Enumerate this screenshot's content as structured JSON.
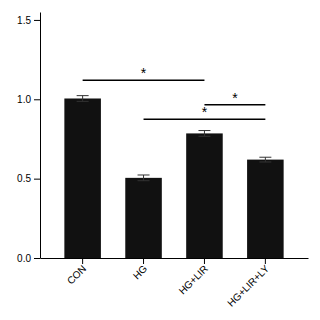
{
  "chart_data": {
    "type": "bar",
    "categories": [
      "CON",
      "HG",
      "HG+LIR",
      "HG+LIR+LY"
    ],
    "values": [
      1.005,
      0.505,
      0.785,
      0.62
    ],
    "errors": [
      0.018,
      0.018,
      0.018,
      0.015
    ],
    "color": "#111111",
    "ylim": [
      0,
      1.55
    ],
    "yticks": [
      {
        "value": 0,
        "label": "0.0"
      },
      0.5,
      {
        "value": 1,
        "label": "1.0"
      },
      1.5
    ],
    "grid": false,
    "annotations": [
      {
        "text": "*",
        "from": "CON",
        "to": "HG+LIR",
        "y": 1.12
      },
      {
        "text": "*",
        "from": "HG",
        "to": "HG+LIR+LY",
        "y": 0.875
      },
      {
        "text": "*",
        "from": "HG+LIR",
        "to": "HG+LIR+LY",
        "y": 0.965
      }
    ]
  }
}
